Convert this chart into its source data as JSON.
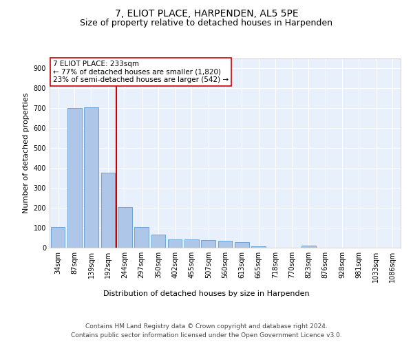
{
  "title": "7, ELIOT PLACE, HARPENDEN, AL5 5PE",
  "subtitle": "Size of property relative to detached houses in Harpenden",
  "xlabel": "Distribution of detached houses by size in Harpenden",
  "ylabel": "Number of detached properties",
  "categories": [
    "34sqm",
    "87sqm",
    "139sqm",
    "192sqm",
    "244sqm",
    "297sqm",
    "350sqm",
    "402sqm",
    "455sqm",
    "507sqm",
    "560sqm",
    "613sqm",
    "665sqm",
    "718sqm",
    "770sqm",
    "823sqm",
    "876sqm",
    "928sqm",
    "981sqm",
    "1033sqm",
    "1086sqm"
  ],
  "values": [
    103,
    700,
    703,
    375,
    205,
    103,
    65,
    42,
    42,
    38,
    33,
    27,
    6,
    0,
    0,
    12,
    0,
    0,
    0,
    0,
    0
  ],
  "bar_color": "#aec6e8",
  "bar_edge_color": "#5b9bd5",
  "vline_x_index": 4,
  "vline_color": "#cc0000",
  "annotation_text": "7 ELIOT PLACE: 233sqm\n← 77% of detached houses are smaller (1,820)\n23% of semi-detached houses are larger (542) →",
  "annotation_box_color": "#ffffff",
  "annotation_box_edge": "#cc0000",
  "ylim": [
    0,
    950
  ],
  "yticks": [
    0,
    100,
    200,
    300,
    400,
    500,
    600,
    700,
    800,
    900
  ],
  "footer1": "Contains HM Land Registry data © Crown copyright and database right 2024.",
  "footer2": "Contains public sector information licensed under the Open Government Licence v3.0.",
  "plot_bg_color": "#e8f0fb",
  "title_fontsize": 10,
  "subtitle_fontsize": 9,
  "axis_label_fontsize": 8,
  "tick_fontsize": 7,
  "annotation_fontsize": 7.5,
  "footer_fontsize": 6.5
}
